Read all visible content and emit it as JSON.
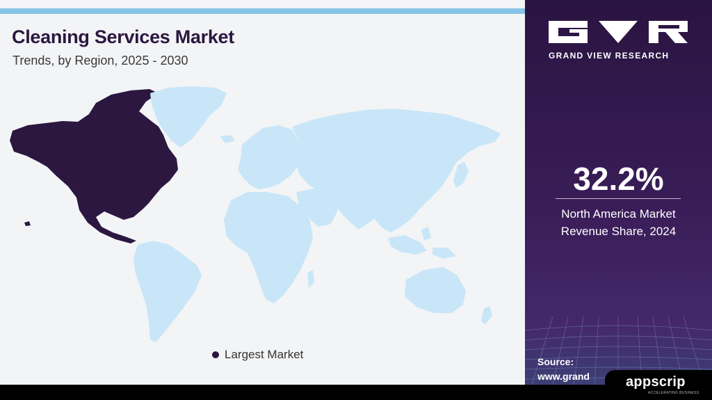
{
  "header": {
    "title": "Cleaning Services Market",
    "subtitle": "Trends, by Region, 2025 - 2030"
  },
  "map": {
    "highlighted_region": "North America",
    "highlight_color": "#2b1740",
    "other_regions_color": "#c8e6f7"
  },
  "legend": {
    "label": "Largest Market",
    "color": "#2b1740"
  },
  "brand": {
    "name": "GRAND VIEW RESEARCH"
  },
  "stat": {
    "value": "32.2%",
    "caption_line1": "North America Market",
    "caption_line2": "Revenue Share, 2024"
  },
  "source": {
    "label": "Source:",
    "url": "www.grand"
  },
  "watermark": {
    "name": "appscrip",
    "tagline": "ACCELERATING BUSINESS"
  },
  "colors": {
    "accent_bar": "#86c5e7",
    "panel_purple": "#2a1441"
  }
}
